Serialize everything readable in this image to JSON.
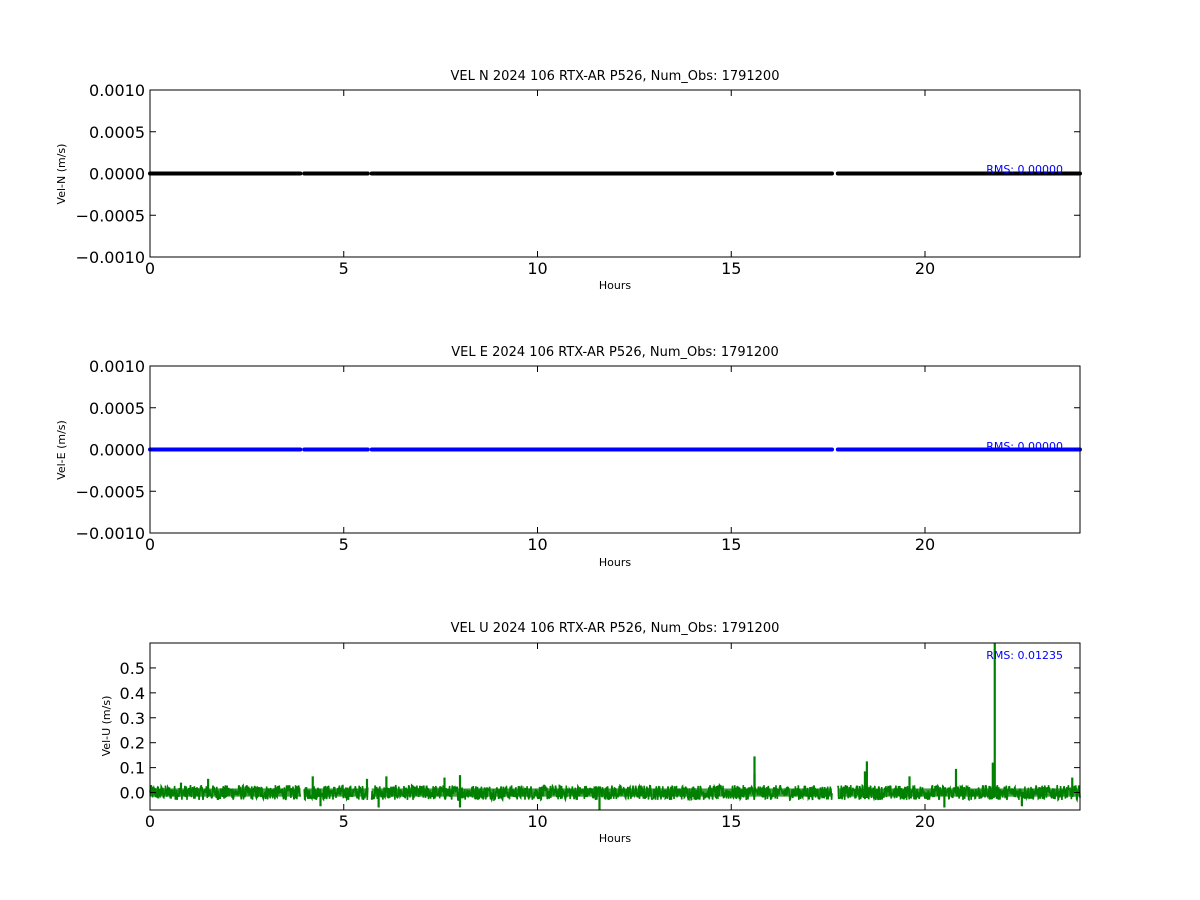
{
  "chart_data": [
    {
      "type": "line",
      "title": "VEL N 2024 106 RTX-AR  P526, Num_Obs: 1791200",
      "xlabel": "Hours",
      "ylabel": "Vel-N (m/s)",
      "xlim": [
        0,
        24
      ],
      "ylim": [
        -0.001,
        0.001
      ],
      "xticks": [
        0,
        5,
        10,
        15,
        20
      ],
      "xtick_labels": [
        "0",
        "5",
        "10",
        "15",
        "20"
      ],
      "yticks": [
        0.001,
        0.0005,
        0,
        -0.0005,
        -0.001
      ],
      "ytick_labels": [
        "0.0010",
        "0.0005",
        "0.0000",
        "−0.0005",
        "−0.0010"
      ],
      "grid": false,
      "color": "#000000",
      "annotation": "RMS:  0.00000",
      "annotation_color": "#0000ff",
      "series": [
        {
          "segments": [
            [
              0,
              3.88
            ],
            [
              3.98,
              5.62
            ],
            [
              5.72,
              17.6
            ],
            [
              17.75,
              24
            ]
          ],
          "value": 0
        }
      ]
    },
    {
      "type": "line",
      "title": "VEL E 2024 106 RTX-AR  P526, Num_Obs: 1791200",
      "xlabel": "Hours",
      "ylabel": "Vel-E (m/s)",
      "xlim": [
        0,
        24
      ],
      "ylim": [
        -0.001,
        0.001
      ],
      "xticks": [
        0,
        5,
        10,
        15,
        20
      ],
      "xtick_labels": [
        "0",
        "5",
        "10",
        "15",
        "20"
      ],
      "yticks": [
        0.001,
        0.0005,
        0,
        -0.0005,
        -0.001
      ],
      "ytick_labels": [
        "0.0010",
        "0.0005",
        "0.0000",
        "−0.0005",
        "−0.0010"
      ],
      "grid": false,
      "color": "#0000ff",
      "annotation": "RMS:  0.00000",
      "annotation_color": "#0000ff",
      "series": [
        {
          "segments": [
            [
              0,
              3.88
            ],
            [
              3.98,
              5.62
            ],
            [
              5.72,
              17.6
            ],
            [
              17.75,
              24
            ]
          ],
          "value": 0
        }
      ]
    },
    {
      "type": "line",
      "title": "VEL U 2024 106 RTX-AR  P526, Num_Obs: 1791200",
      "xlabel": "Hours",
      "ylabel": "Vel-U (m/s)",
      "xlim": [
        0,
        24
      ],
      "ylim": [
        -0.07,
        0.6
      ],
      "xticks": [
        0,
        5,
        10,
        15,
        20
      ],
      "xtick_labels": [
        "0",
        "5",
        "10",
        "15",
        "20"
      ],
      "yticks": [
        0.5,
        0.4,
        0.3,
        0.2,
        0.1,
        0.0
      ],
      "ytick_labels": [
        "0.5",
        "0.4",
        "0.3",
        "0.2",
        "0.1",
        "0.0"
      ],
      "grid": false,
      "color": "#008000",
      "annotation": "RMS:  0.01235",
      "annotation_color": "#0000ff",
      "noise_band": [
        -0.03,
        0.03
      ],
      "segments": [
        [
          0,
          3.88
        ],
        [
          3.98,
          5.62
        ],
        [
          5.72,
          17.6
        ],
        [
          17.75,
          24
        ]
      ],
      "spikes": [
        {
          "x": 0.8,
          "y": 0.04
        },
        {
          "x": 1.5,
          "y": 0.055
        },
        {
          "x": 4.2,
          "y": 0.065
        },
        {
          "x": 4.4,
          "y": -0.055
        },
        {
          "x": 5.6,
          "y": 0.055
        },
        {
          "x": 5.9,
          "y": -0.06
        },
        {
          "x": 6.1,
          "y": 0.065
        },
        {
          "x": 7.6,
          "y": 0.06
        },
        {
          "x": 8.0,
          "y": 0.07
        },
        {
          "x": 8.0,
          "y": -0.06
        },
        {
          "x": 11.6,
          "y": -0.07
        },
        {
          "x": 15.6,
          "y": 0.145
        },
        {
          "x": 15.6,
          "y": 0.075
        },
        {
          "x": 18.5,
          "y": 0.125
        },
        {
          "x": 18.45,
          "y": 0.085
        },
        {
          "x": 19.6,
          "y": 0.065
        },
        {
          "x": 20.5,
          "y": -0.06
        },
        {
          "x": 20.8,
          "y": 0.095
        },
        {
          "x": 21.75,
          "y": 0.12
        },
        {
          "x": 21.8,
          "y": 0.6
        },
        {
          "x": 22.5,
          "y": -0.055
        },
        {
          "x": 23.8,
          "y": 0.06
        }
      ]
    }
  ]
}
